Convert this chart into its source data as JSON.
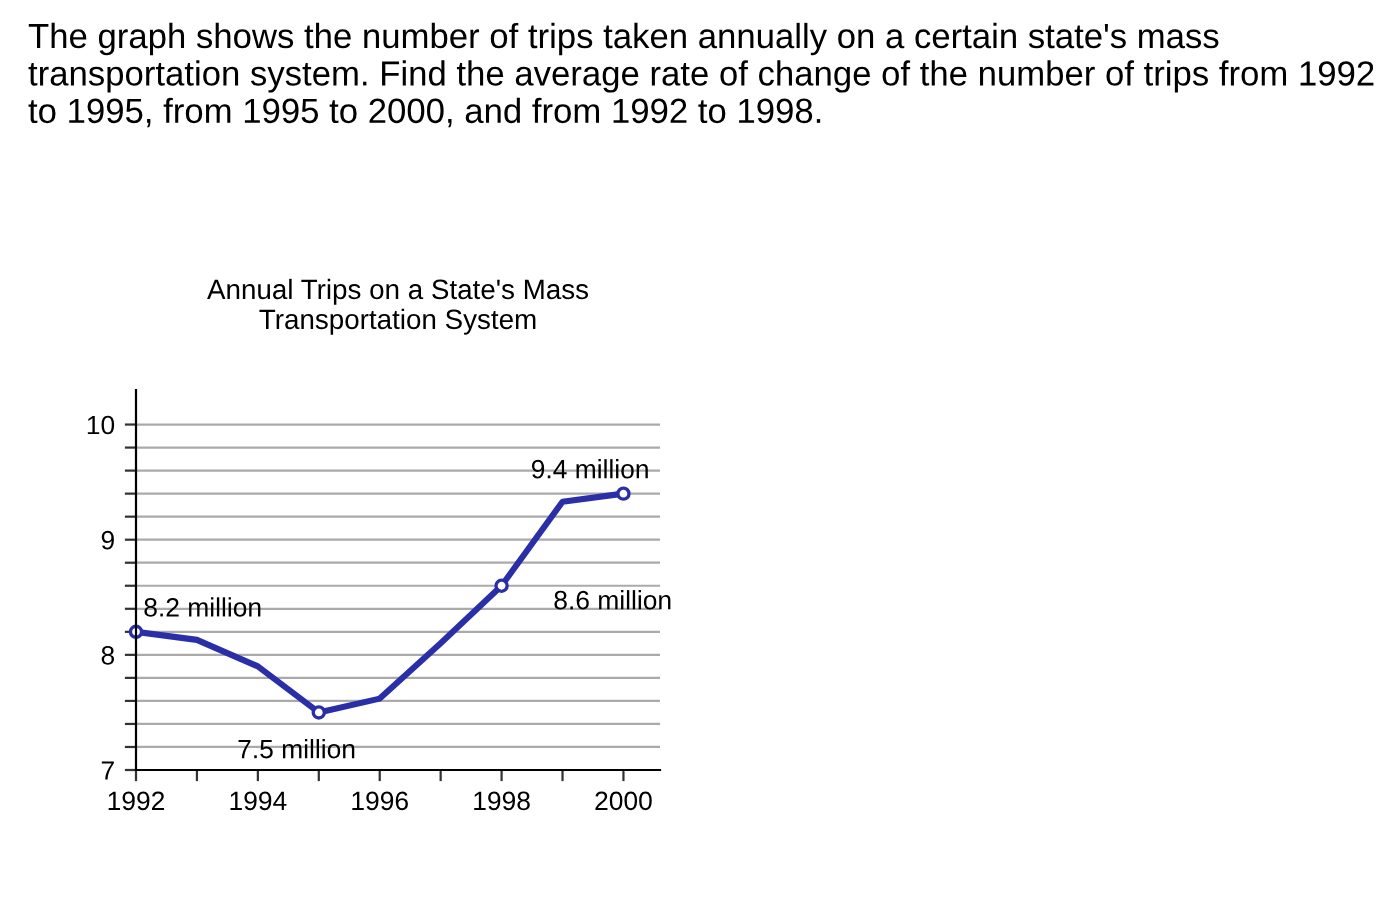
{
  "chart_data": {
    "type": "line",
    "title": "Annual Trips on a State's Mass\nTransportation System",
    "x": [
      1992,
      1993,
      1994,
      1995,
      1996,
      1997,
      1998,
      1999,
      2000
    ],
    "series": [
      {
        "color": "#2a2fa8",
        "values": [
          8.2,
          8.13,
          7.9,
          7.5,
          7.62,
          8.1,
          8.6,
          9.33,
          9.4
        ]
      }
    ],
    "xlim": [
      1992,
      2000.6
    ],
    "ylim": [
      7,
      10.3
    ],
    "xticks": [
      1992,
      {
        "value": 1993,
        "label": null
      },
      1994,
      {
        "value": 1995,
        "label": null
      },
      1996,
      {
        "value": 1997,
        "label": null
      },
      1998,
      {
        "value": 1999,
        "label": null
      },
      2000
    ],
    "yticks": [
      7,
      {
        "value": 7.2,
        "label": null
      },
      {
        "value": 7.4,
        "label": null
      },
      {
        "value": 7.6,
        "label": null
      },
      {
        "value": 7.8,
        "label": null
      },
      8,
      {
        "value": 8.2,
        "label": null
      },
      {
        "value": 8.4,
        "label": null
      },
      {
        "value": 8.6,
        "label": null
      },
      {
        "value": 8.8,
        "label": null
      },
      9,
      {
        "value": 9.2,
        "label": null
      },
      {
        "value": 9.4,
        "label": null
      },
      {
        "value": 9.6,
        "label": null
      },
      {
        "value": 9.8,
        "label": null
      },
      10
    ],
    "grid": "y",
    "legend": false,
    "annotations": [
      {
        "text": "The graph shows the number of trips taken annually on a certain state's mass transportation system. Find the average rate of change of the number of trips from 1992 to 1995, from 1995 to 2000, and from 1992 to 1998."
      },
      {
        "text": "8.2 million",
        "x": 1992,
        "y": 8.2
      },
      {
        "text": "7.5 million",
        "x": 1995,
        "y": 7.5
      },
      {
        "text": "8.6 million",
        "x": 1998,
        "y": 8.6
      },
      {
        "text": "9.4 million",
        "x": 2000,
        "y": 9.4
      }
    ]
  }
}
